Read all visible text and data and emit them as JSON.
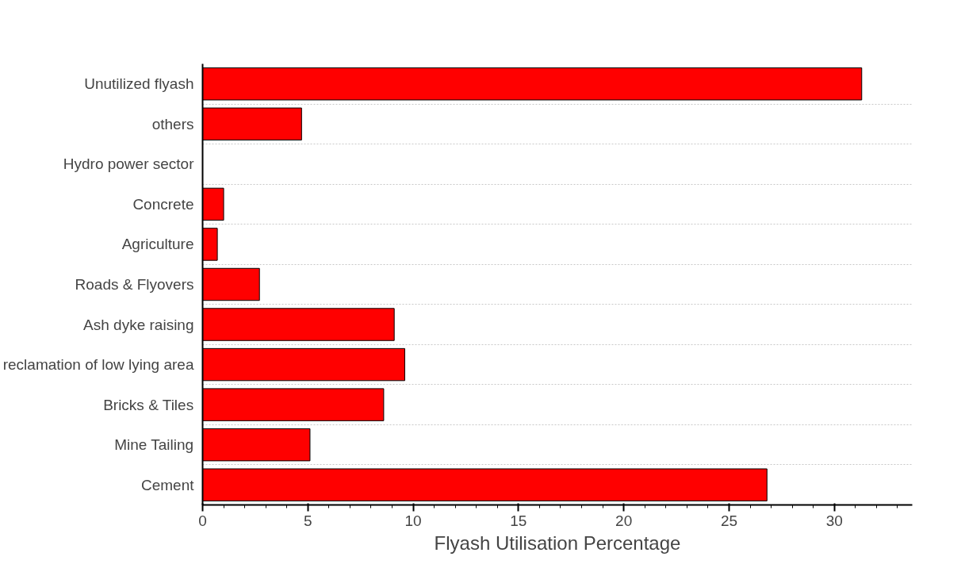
{
  "chart_data": {
    "type": "bar",
    "orientation": "horizontal",
    "xlabel": "Flyash Utilisation Percentage",
    "categories": [
      "Unutilized flyash",
      "others",
      "Hydro power sector",
      "Concrete",
      "Agriculture",
      "Roads & Flyovers",
      "Ash dyke raising",
      "reclamation of low lying area",
      "Bricks & Tiles",
      "Mine Tailing",
      "Cement"
    ],
    "values": [
      31.3,
      4.7,
      null,
      1.0,
      0.7,
      2.7,
      9.1,
      9.6,
      8.6,
      5.1,
      26.8
    ],
    "color": "#ff0000",
    "xlim": [
      0,
      33.7
    ],
    "xticks": [
      0,
      5,
      10,
      15,
      20,
      25,
      30
    ],
    "grid": "y"
  }
}
